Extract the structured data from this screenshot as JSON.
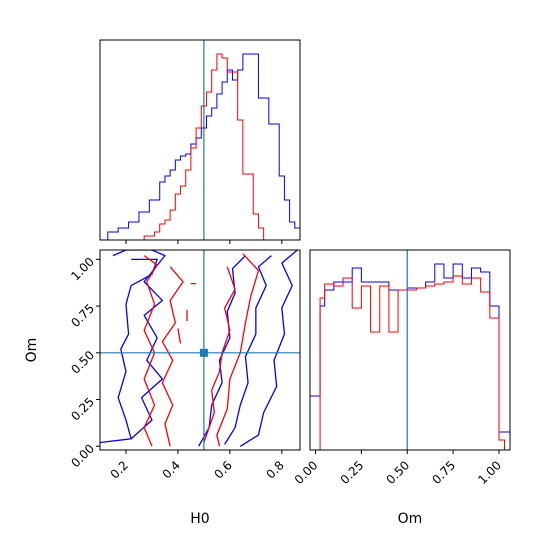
{
  "colors": {
    "series_a": "#0000ff",
    "series_b": "#ff0000",
    "truth": "#1f77b4",
    "frame": "#000000",
    "background": "#ffffff"
  },
  "chart_data": [
    {
      "type": "histogram",
      "panel": "H0 marginal",
      "xlim": [
        0.1,
        0.87
      ],
      "ylim": [
        0,
        1
      ],
      "x_ticks": [
        0.2,
        0.4,
        0.6,
        0.8
      ],
      "x_tick_labels_visible": false,
      "y_ticks_visible": false,
      "truth": 0.5,
      "bin_edges": [
        0.11,
        0.13,
        0.15,
        0.17,
        0.19,
        0.21,
        0.23,
        0.25,
        0.27,
        0.29,
        0.31,
        0.33,
        0.35,
        0.37,
        0.39,
        0.41,
        0.43,
        0.45,
        0.47,
        0.49,
        0.51,
        0.53,
        0.55,
        0.57,
        0.59,
        0.61,
        0.63,
        0.65,
        0.67,
        0.69,
        0.71,
        0.73,
        0.75,
        0.77,
        0.79,
        0.81,
        0.83,
        0.85,
        0.87
      ],
      "series": [
        {
          "color": "blue",
          "values": [
            0.0,
            0.04,
            0.04,
            0.06,
            0.06,
            0.09,
            0.09,
            0.14,
            0.14,
            0.2,
            0.2,
            0.29,
            0.32,
            0.35,
            0.4,
            0.42,
            0.43,
            0.48,
            0.51,
            0.56,
            0.62,
            0.66,
            0.73,
            0.79,
            0.85,
            0.8,
            0.85,
            0.93,
            0.93,
            0.93,
            0.71,
            0.71,
            0.58,
            0.58,
            0.32,
            0.2,
            0.09,
            0.06
          ]
        },
        {
          "color": "red",
          "values": [
            0.0,
            0.0,
            0.0,
            0.0,
            0.0,
            0.0,
            0.0,
            0.0,
            0.02,
            0.02,
            0.04,
            0.08,
            0.1,
            0.15,
            0.23,
            0.27,
            0.35,
            0.46,
            0.56,
            0.67,
            0.74,
            0.85,
            0.93,
            0.91,
            0.84,
            0.84,
            0.6,
            0.33,
            0.33,
            0.13,
            0.06,
            0.0,
            0.0,
            0.0,
            0.0,
            0.0,
            0.0,
            0.0
          ]
        }
      ]
    },
    {
      "type": "contour",
      "panel": "H0 vs Om",
      "xlabel": "H0",
      "ylabel": "Om",
      "xlim": [
        0.1,
        0.87
      ],
      "ylim": [
        -0.02,
        1.05
      ],
      "x_ticks": [
        0.2,
        0.4,
        0.6,
        0.8
      ],
      "x_tick_labels": [
        "0.2",
        "0.4",
        "0.6",
        "0.8"
      ],
      "y_ticks": [
        0.0,
        0.25,
        0.5,
        0.75,
        1.0
      ],
      "y_tick_labels": [
        "0.00",
        "0.25",
        "0.50",
        "0.75",
        "1.00"
      ],
      "truth": {
        "H0": 0.5,
        "Om": 0.5
      },
      "series": [
        {
          "color": "blue",
          "contours": [
            [
              [
                0.15,
                1.02
              ],
              [
                0.2,
                1.05
              ],
              [
                0.3,
                1.05
              ],
              [
                0.35,
                1.02
              ],
              [
                0.27,
                0.88
              ],
              [
                0.34,
                0.78
              ],
              [
                0.27,
                0.7
              ],
              [
                0.32,
                0.58
              ],
              [
                0.28,
                0.46
              ],
              [
                0.34,
                0.36
              ],
              [
                0.26,
                0.26
              ],
              [
                0.3,
                0.14
              ],
              [
                0.22,
                0.04
              ],
              [
                0.1,
                0.02
              ]
            ],
            [
              [
                0.22,
                1.0
              ],
              [
                0.32,
                1.0
              ],
              [
                0.3,
                0.92
              ],
              [
                0.22,
                0.86
              ],
              [
                0.2,
                0.76
              ],
              [
                0.21,
                0.6
              ],
              [
                0.18,
                0.52
              ],
              [
                0.2,
                0.4
              ],
              [
                0.17,
                0.26
              ],
              [
                0.2,
                0.14
              ],
              [
                0.22,
                0.04
              ]
            ],
            [
              [
                0.86,
                1.05
              ],
              [
                0.8,
                0.98
              ],
              [
                0.84,
                0.86
              ],
              [
                0.8,
                0.74
              ],
              [
                0.81,
                0.6
              ],
              [
                0.77,
                0.46
              ],
              [
                0.78,
                0.32
              ],
              [
                0.73,
                0.18
              ],
              [
                0.71,
                0.06
              ],
              [
                0.64,
                0.0
              ]
            ],
            [
              [
                0.76,
                1.02
              ],
              [
                0.71,
                0.96
              ],
              [
                0.74,
                0.86
              ],
              [
                0.7,
                0.74
              ],
              [
                0.7,
                0.6
              ],
              [
                0.66,
                0.48
              ],
              [
                0.67,
                0.34
              ],
              [
                0.64,
                0.22
              ],
              [
                0.62,
                0.1
              ],
              [
                0.58,
                0.01
              ]
            ],
            [
              [
                0.66,
                1.02
              ],
              [
                0.61,
                0.95
              ],
              [
                0.62,
                0.82
              ],
              [
                0.59,
                0.72
              ],
              [
                0.6,
                0.58
              ],
              [
                0.56,
                0.46
              ],
              [
                0.57,
                0.34
              ],
              [
                0.53,
                0.22
              ],
              [
                0.52,
                0.1
              ],
              [
                0.48,
                0.0
              ]
            ]
          ]
        },
        {
          "color": "red",
          "contours": [
            [
              [
                0.27,
                1.02
              ],
              [
                0.32,
                0.97
              ],
              [
                0.28,
                0.88
              ],
              [
                0.31,
                0.76
              ],
              [
                0.27,
                0.62
              ],
              [
                0.31,
                0.5
              ],
              [
                0.27,
                0.36
              ],
              [
                0.31,
                0.22
              ],
              [
                0.27,
                0.1
              ],
              [
                0.3,
                0.0
              ]
            ],
            [
              [
                0.37,
                0.96
              ],
              [
                0.42,
                0.88
              ],
              [
                0.37,
                0.78
              ],
              [
                0.39,
                0.66
              ],
              [
                0.34,
                0.56
              ],
              [
                0.38,
                0.46
              ],
              [
                0.34,
                0.34
              ],
              [
                0.38,
                0.22
              ],
              [
                0.35,
                0.12
              ],
              [
                0.37,
                0.0
              ]
            ],
            [
              [
                0.65,
                1.03
              ],
              [
                0.71,
                0.94
              ],
              [
                0.68,
                0.8
              ],
              [
                0.66,
                0.66
              ],
              [
                0.64,
                0.5
              ],
              [
                0.6,
                0.36
              ],
              [
                0.59,
                0.2
              ],
              [
                0.55,
                0.06
              ],
              [
                0.56,
                0.0
              ]
            ],
            [
              [
                0.59,
                0.96
              ],
              [
                0.62,
                0.84
              ],
              [
                0.58,
                0.74
              ],
              [
                0.6,
                0.62
              ],
              [
                0.57,
                0.5
              ],
              [
                0.56,
                0.4
              ],
              [
                0.53,
                0.3
              ],
              [
                0.54,
                0.18
              ],
              [
                0.5,
                0.02
              ]
            ],
            [
              [
                0.47,
                0.87
              ],
              [
                0.45,
                0.87
              ]
            ],
            [
              [
                0.435,
                0.73
              ],
              [
                0.435,
                0.67
              ]
            ],
            [
              [
                0.4,
                0.63
              ],
              [
                0.41,
                0.55
              ]
            ]
          ]
        }
      ]
    },
    {
      "type": "histogram",
      "panel": "Om marginal",
      "xlabel": "Om",
      "xlim": [
        -0.03,
        1.06
      ],
      "ylim": [
        0,
        1
      ],
      "x_ticks": [
        0.0,
        0.25,
        0.5,
        0.75,
        1.0
      ],
      "x_tick_labels": [
        "0.00",
        "0.25",
        "0.50",
        "0.75",
        "1.00"
      ],
      "y_ticks_visible": false,
      "truth": 0.5,
      "bin_edges": [
        -0.03,
        0.0,
        0.025,
        0.05,
        0.1,
        0.15,
        0.2,
        0.25,
        0.3,
        0.35,
        0.4,
        0.45,
        0.5,
        0.55,
        0.6,
        0.65,
        0.7,
        0.75,
        0.8,
        0.85,
        0.9,
        0.95,
        1.0,
        1.03,
        1.06
      ],
      "series": [
        {
          "color": "blue",
          "values": [
            0.27,
            0.27,
            0.72,
            0.8,
            0.84,
            0.84,
            0.91,
            0.84,
            0.84,
            0.84,
            0.8,
            0.8,
            0.81,
            0.81,
            0.84,
            0.93,
            0.86,
            0.93,
            0.86,
            0.91,
            0.89,
            0.72,
            0.09,
            0.09
          ]
        },
        {
          "color": "red",
          "values": [
            0.0,
            0.0,
            0.76,
            0.83,
            0.82,
            0.86,
            0.71,
            0.82,
            0.59,
            0.82,
            0.59,
            0.8,
            0.8,
            0.81,
            0.82,
            0.83,
            0.84,
            0.87,
            0.83,
            0.86,
            0.79,
            0.66,
            0.05,
            0.0
          ]
        }
      ]
    }
  ]
}
